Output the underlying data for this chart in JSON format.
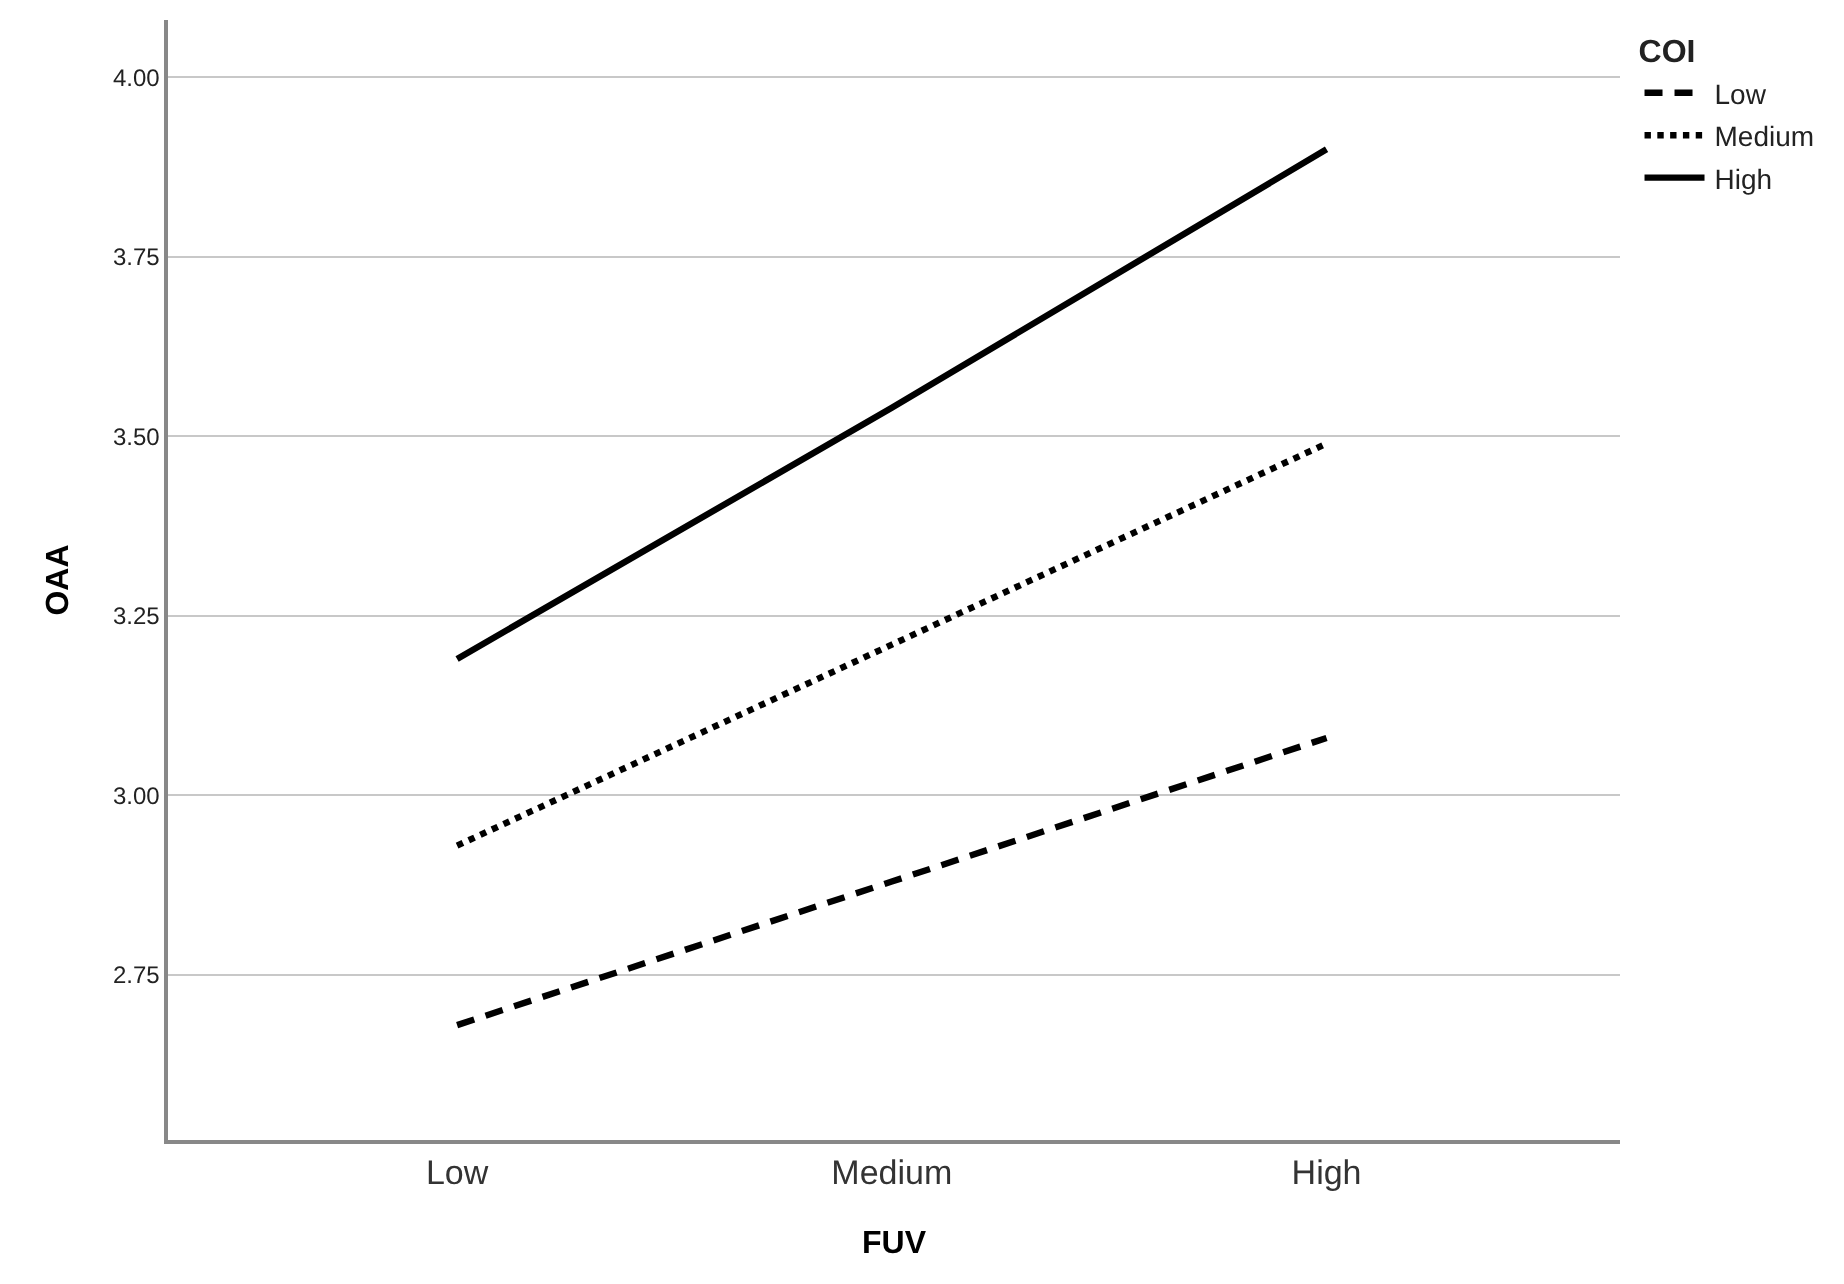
{
  "chart_data": {
    "type": "line",
    "xlabel": "FUV",
    "ylabel": "OAA",
    "legend_title": "COI",
    "legend": "top right",
    "grid": "y",
    "categories": [
      "Low",
      "Medium",
      "High"
    ],
    "series": [
      {
        "name": "Low",
        "color": "#000000",
        "line_style": "dashed",
        "values": [
          2.68,
          2.88,
          3.08
        ]
      },
      {
        "name": "Medium",
        "color": "#000000",
        "line_style": "dotted",
        "values": [
          2.93,
          3.21,
          3.49
        ]
      },
      {
        "name": "High",
        "color": "#000000",
        "line_style": "solid",
        "values": [
          3.19,
          3.54,
          3.9
        ]
      }
    ],
    "ylim": [
      2.52,
      4.08
    ],
    "yticks": [
      {
        "value": 2.75,
        "label": "2.75"
      },
      {
        "value": 3,
        "label": "3.00"
      },
      {
        "value": 3.25,
        "label": "3.25"
      },
      {
        "value": 3.5,
        "label": "3.50"
      },
      {
        "value": 3.75,
        "label": "3.75"
      },
      {
        "value": 4,
        "label": "4.00"
      }
    ]
  }
}
